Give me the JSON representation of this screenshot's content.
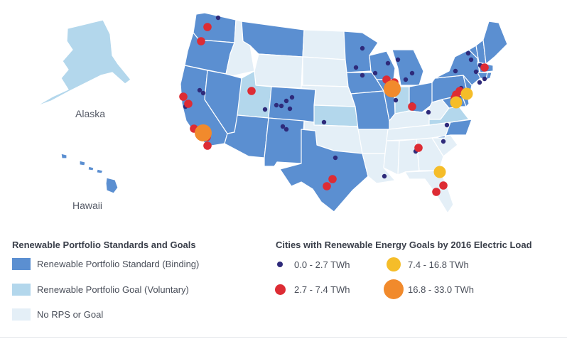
{
  "colors": {
    "binding": "#5b8fd1",
    "voluntary": "#b3d7ec",
    "none": "#e4eff7",
    "border": "#ffffff",
    "small_city": "#2e2a7a",
    "medium_city": "#dd2c34",
    "large_city": "#f5bd29",
    "xlarge_city": "#f18a2c"
  },
  "insets": {
    "alaska_label": "Alaska",
    "hawaii_label": "Hawaii"
  },
  "legend_rps": {
    "title": "Renewable Portfolio Standards and Goals",
    "items": [
      {
        "key": "binding",
        "label": "Renewable Portfolio Standard (Binding)"
      },
      {
        "key": "voluntary",
        "label": "Renewable Portfolio Goal (Voluntary)"
      },
      {
        "key": "none",
        "label": "No RPS or Goal"
      }
    ]
  },
  "legend_cities": {
    "title": "Cities with Renewable Energy Goals by 2016 Electric Load",
    "items": [
      {
        "key": "small_city",
        "label": "0.0 - 2.7 TWh"
      },
      {
        "key": "medium_city",
        "label": "2.7 - 7.4 TWh"
      },
      {
        "key": "large_city",
        "label": "7.4 - 16.8 TWh"
      },
      {
        "key": "xlarge_city",
        "label": "16.8 - 33.0 TWh"
      }
    ]
  },
  "regions": [
    {
      "name": "washington",
      "status": "binding"
    },
    {
      "name": "oregon",
      "status": "binding"
    },
    {
      "name": "california",
      "status": "binding"
    },
    {
      "name": "nevada",
      "status": "binding"
    },
    {
      "name": "idaho",
      "status": "none"
    },
    {
      "name": "montana",
      "status": "binding"
    },
    {
      "name": "wyoming",
      "status": "none"
    },
    {
      "name": "utah",
      "status": "voluntary"
    },
    {
      "name": "arizona",
      "status": "binding"
    },
    {
      "name": "colorado",
      "status": "binding"
    },
    {
      "name": "new-mexico",
      "status": "binding"
    },
    {
      "name": "north-dakota",
      "status": "none"
    },
    {
      "name": "south-dakota",
      "status": "none"
    },
    {
      "name": "nebraska",
      "status": "none"
    },
    {
      "name": "kansas",
      "status": "voluntary"
    },
    {
      "name": "oklahoma",
      "status": "none"
    },
    {
      "name": "texas",
      "status": "binding"
    },
    {
      "name": "minnesota",
      "status": "binding"
    },
    {
      "name": "iowa",
      "status": "binding"
    },
    {
      "name": "missouri",
      "status": "binding"
    },
    {
      "name": "arkansas",
      "status": "none"
    },
    {
      "name": "louisiana",
      "status": "none"
    },
    {
      "name": "wisconsin",
      "status": "binding"
    },
    {
      "name": "illinois",
      "status": "binding"
    },
    {
      "name": "michigan",
      "status": "binding"
    },
    {
      "name": "indiana",
      "status": "voluntary"
    },
    {
      "name": "ohio",
      "status": "binding"
    },
    {
      "name": "kentucky",
      "status": "none"
    },
    {
      "name": "tennessee",
      "status": "none"
    },
    {
      "name": "mississippi",
      "status": "none"
    },
    {
      "name": "alabama",
      "status": "none"
    },
    {
      "name": "georgia",
      "status": "none"
    },
    {
      "name": "florida",
      "status": "none"
    },
    {
      "name": "south-carolina",
      "status": "none"
    },
    {
      "name": "north-carolina",
      "status": "binding"
    },
    {
      "name": "virginia",
      "status": "voluntary"
    },
    {
      "name": "west-virginia",
      "status": "none"
    },
    {
      "name": "pennsylvania",
      "status": "binding"
    },
    {
      "name": "new-york",
      "status": "binding"
    },
    {
      "name": "new-jersey",
      "status": "binding"
    },
    {
      "name": "delaware",
      "status": "binding"
    },
    {
      "name": "maryland",
      "status": "binding"
    },
    {
      "name": "vermont",
      "status": "binding"
    },
    {
      "name": "new-hampshire",
      "status": "binding"
    },
    {
      "name": "maine",
      "status": "binding"
    },
    {
      "name": "massachusetts",
      "status": "binding"
    },
    {
      "name": "rhode-island",
      "status": "binding"
    },
    {
      "name": "connecticut",
      "status": "binding"
    },
    {
      "name": "alaska",
      "status": "voluntary"
    },
    {
      "name": "hawaii",
      "status": "binding"
    }
  ]
}
